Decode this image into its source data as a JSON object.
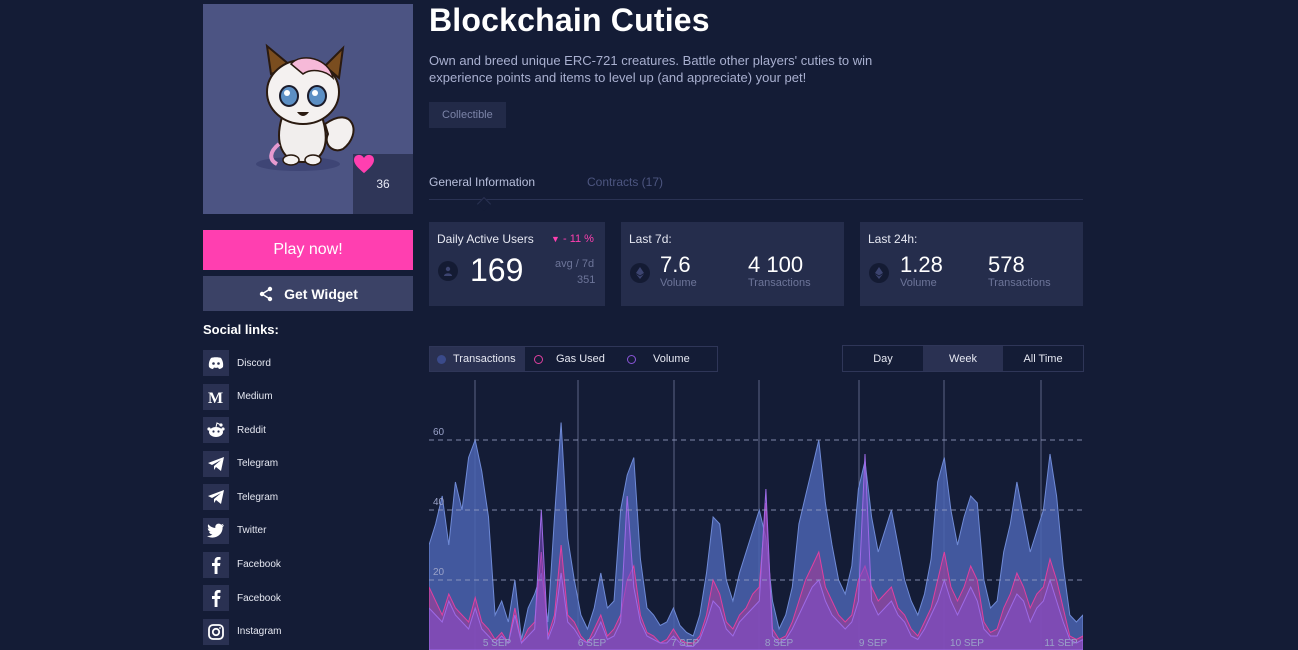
{
  "game": {
    "title": "Blockchain Cuties",
    "description": "Own and breed unique ERC-721 creatures. Battle other players' cuties to win experience points and items to level up (and appreciate) your pet!",
    "tag": "Collectible",
    "likes": "36"
  },
  "actions": {
    "play_label": "Play now!",
    "widget_label": "Get Widget"
  },
  "social": {
    "title": "Social links:",
    "items": [
      {
        "label": "Discord",
        "icon": "discord-icon"
      },
      {
        "label": "Medium",
        "icon": "medium-icon"
      },
      {
        "label": "Reddit",
        "icon": "reddit-icon"
      },
      {
        "label": "Telegram",
        "icon": "telegram-icon"
      },
      {
        "label": "Telegram",
        "icon": "telegram-icon"
      },
      {
        "label": "Twitter",
        "icon": "twitter-icon"
      },
      {
        "label": "Facebook",
        "icon": "facebook-icon"
      },
      {
        "label": "Facebook",
        "icon": "facebook-icon"
      },
      {
        "label": "Instagram",
        "icon": "instagram-icon"
      }
    ]
  },
  "tabs": {
    "general": "General Information",
    "contracts": "Contracts (17)"
  },
  "stats": {
    "dau": {
      "label": "Daily Active Users",
      "trend": "- 11 %",
      "value": "169",
      "avg_label": "avg / 7d",
      "avg_value": "351"
    },
    "last7d": {
      "label": "Last 7d:",
      "volume": "7.6",
      "volume_label": "Volume",
      "transactions": "4 100",
      "transactions_label": "Transactions"
    },
    "last24h": {
      "label": "Last 24h:",
      "volume": "1.28",
      "volume_label": "Volume",
      "transactions": "578",
      "transactions_label": "Transactions"
    }
  },
  "chart_controls": {
    "legend": [
      {
        "label": "Transactions",
        "active": true
      },
      {
        "label": "Gas Used",
        "active": false
      },
      {
        "label": "Volume",
        "active": false
      }
    ],
    "ranges": [
      "Day",
      "Week",
      "All Time"
    ],
    "selected_range": "Week"
  },
  "colors": {
    "accent": "#ff3fb0",
    "background": "#141c36",
    "transactions": "#4a63b0",
    "gas_used": "#e040a0",
    "volume": "#8a55d8"
  },
  "chart_data": {
    "type": "area",
    "title": "",
    "xlabel": "",
    "ylabel": "",
    "ylim": [
      0,
      75
    ],
    "yticks": [
      20,
      40,
      60
    ],
    "grid": true,
    "x_labels": [
      "5 SEP",
      "6 SEP",
      "7 SEP",
      "8 SEP",
      "9 SEP",
      "10 SEP",
      "11 SEP"
    ],
    "series": [
      {
        "name": "Transactions",
        "values": [
          30,
          36,
          44,
          30,
          48,
          40,
          55,
          60,
          51,
          38,
          10,
          14,
          8,
          20,
          3,
          12,
          16,
          22,
          8,
          38,
          65,
          32,
          20,
          10,
          6,
          12,
          22,
          12,
          14,
          40,
          50,
          55,
          26,
          12,
          10,
          7,
          8,
          12,
          7,
          5,
          4,
          10,
          22,
          38,
          36,
          20,
          14,
          22,
          28,
          34,
          40,
          32,
          14,
          6,
          10,
          18,
          36,
          44,
          52,
          60,
          42,
          30,
          20,
          16,
          24,
          46,
          54,
          38,
          28,
          34,
          40,
          30,
          20,
          14,
          10,
          16,
          26,
          48,
          55,
          40,
          30,
          38,
          44,
          42,
          20,
          12,
          14,
          28,
          36,
          48,
          38,
          28,
          34,
          40,
          56,
          44,
          24,
          10,
          8,
          10
        ]
      },
      {
        "name": "Gas Used",
        "values": [
          18,
          14,
          10,
          16,
          12,
          10,
          8,
          15,
          8,
          6,
          3,
          5,
          2,
          12,
          2,
          6,
          8,
          28,
          4,
          10,
          30,
          10,
          8,
          4,
          2,
          6,
          10,
          4,
          6,
          10,
          20,
          24,
          10,
          5,
          4,
          2,
          3,
          6,
          3,
          2,
          2,
          4,
          10,
          20,
          16,
          8,
          6,
          10,
          12,
          16,
          18,
          42,
          6,
          3,
          4,
          8,
          14,
          20,
          24,
          28,
          18,
          14,
          10,
          8,
          10,
          20,
          24,
          18,
          14,
          16,
          18,
          12,
          10,
          6,
          4,
          8,
          12,
          20,
          28,
          18,
          14,
          18,
          24,
          20,
          8,
          5,
          6,
          12,
          16,
          22,
          18,
          12,
          16,
          18,
          26,
          20,
          12,
          4,
          3,
          4
        ]
      },
      {
        "name": "Volume",
        "values": [
          12,
          10,
          8,
          14,
          10,
          8,
          6,
          12,
          6,
          4,
          2,
          4,
          2,
          10,
          2,
          4,
          6,
          40,
          3,
          8,
          22,
          8,
          6,
          3,
          2,
          4,
          8,
          3,
          4,
          8,
          44,
          18,
          8,
          4,
          3,
          2,
          2,
          4,
          2,
          1,
          1,
          3,
          8,
          14,
          12,
          6,
          4,
          8,
          10,
          12,
          14,
          46,
          4,
          2,
          3,
          6,
          10,
          14,
          18,
          20,
          14,
          10,
          8,
          6,
          8,
          14,
          56,
          14,
          10,
          12,
          14,
          10,
          8,
          4,
          3,
          6,
          10,
          14,
          20,
          14,
          10,
          14,
          18,
          14,
          6,
          4,
          4,
          8,
          12,
          16,
          14,
          8,
          12,
          14,
          20,
          14,
          8,
          3,
          2,
          3
        ]
      }
    ]
  }
}
